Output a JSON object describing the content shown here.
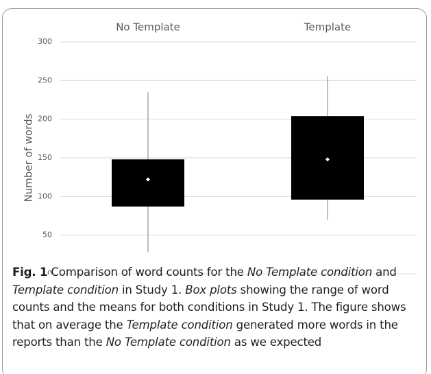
{
  "chart_data": {
    "type": "box",
    "categories": [
      "No Template",
      "Template"
    ],
    "ylabel": "Number of words",
    "ylim": [
      0,
      300
    ],
    "yticks": [
      0,
      50,
      100,
      150,
      200,
      250,
      300
    ],
    "grid": true,
    "color": "#000000",
    "mean_color": "#ffffff",
    "whisker_color": "#7f7f7f",
    "boxes": [
      {
        "whisker_low": 28,
        "q1": 87,
        "q3": 148,
        "whisker_high": 235,
        "mean": 122
      },
      {
        "whisker_low": 70,
        "q1": 96,
        "q3": 204,
        "whisker_high": 256,
        "mean": 148
      }
    ]
  },
  "caption": {
    "label": "Fig. 1",
    "runs": [
      {
        "text": " Comparison of word counts for the ",
        "italic": false
      },
      {
        "text": "No Template condition",
        "italic": true
      },
      {
        "text": " and ",
        "italic": false
      },
      {
        "text": "Template condition",
        "italic": true
      },
      {
        "text": " in Study 1. ",
        "italic": false
      },
      {
        "text": "Box plots",
        "italic": true
      },
      {
        "text": " showing the range of word counts and the means for both conditions in Study 1. The figure shows that on average the ",
        "italic": false
      },
      {
        "text": "Template condition",
        "italic": true
      },
      {
        "text": " generated more words in the reports than the ",
        "italic": false
      },
      {
        "text": "No Template condition",
        "italic": true
      },
      {
        "text": " as we expected",
        "italic": false
      }
    ]
  }
}
